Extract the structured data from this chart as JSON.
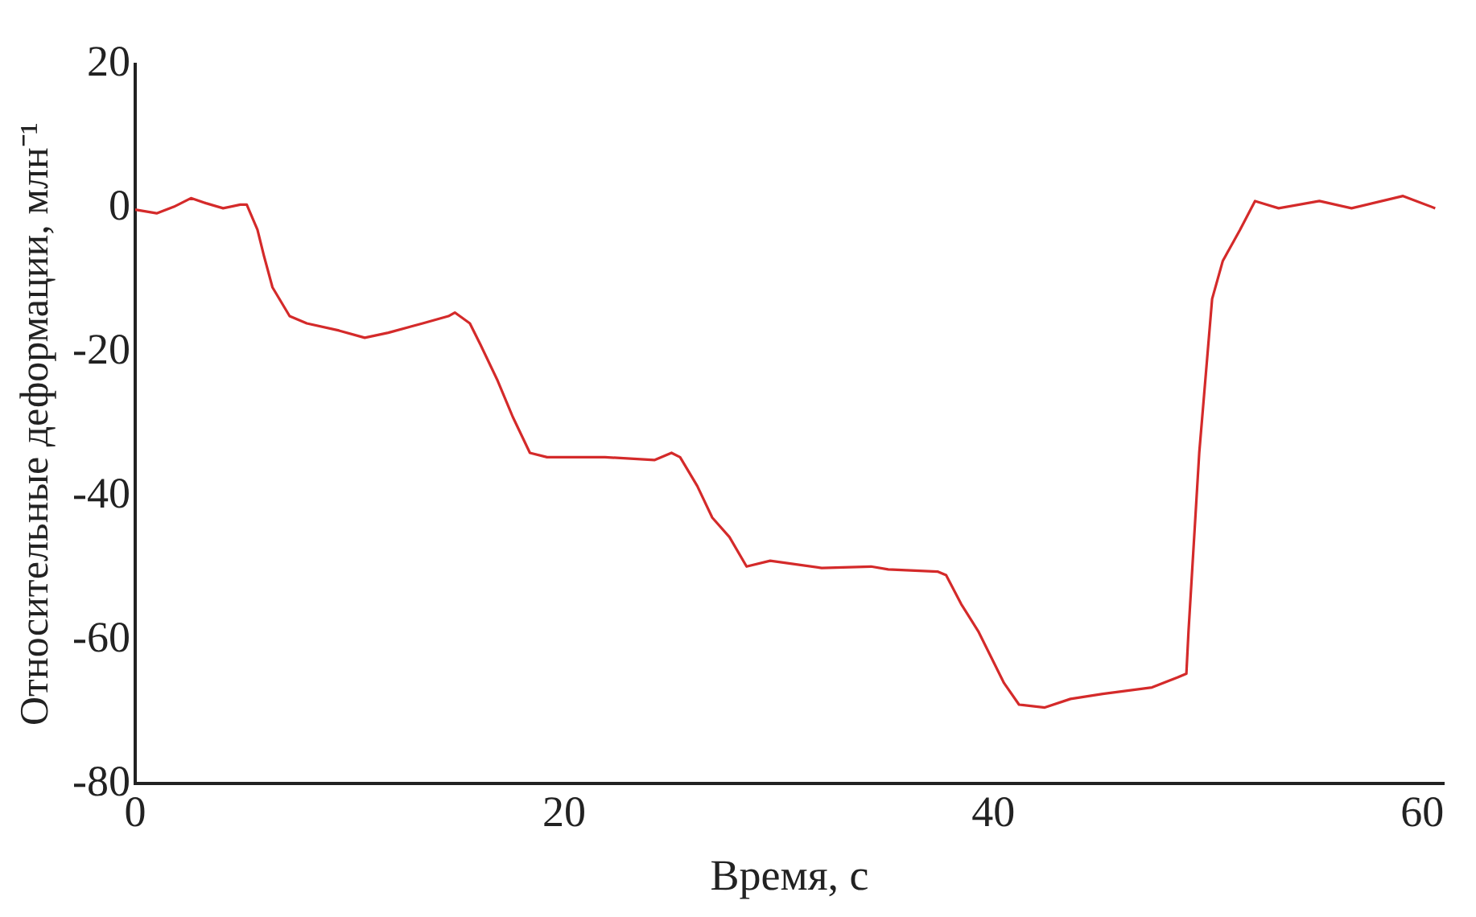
{
  "chart_data": {
    "type": "line",
    "xlabel": "Время, с",
    "ylabel": "Относительные деформации, млн⁻¹",
    "x": [
      0,
      1.0,
      1.8,
      2.6,
      3.3,
      4.1,
      4.9,
      5.2,
      5.7,
      6.0,
      6.4,
      7.2,
      8.0,
      9.5,
      10.7,
      11.8,
      13.4,
      14.6,
      14.9,
      15.6,
      16.1,
      16.9,
      17.6,
      18.4,
      19.2,
      21.9,
      24.2,
      25,
      25.4,
      26.2,
      26.9,
      27.7,
      28.5,
      29.6,
      32,
      34.3,
      35.1,
      37.4,
      37.8,
      38.5,
      39.3,
      40.5,
      41.2,
      42.4,
      43.6,
      45.1,
      47.4,
      48.6,
      49.0,
      49.1,
      49.6,
      50.2,
      50.7,
      51.5,
      52.2,
      53.3,
      55.2,
      56.7,
      59.1,
      60.6
    ],
    "series": [
      {
        "color": "#d42a2a",
        "values": [
          -0.2,
          -0.7,
          0.2,
          1.4,
          0.7,
          0,
          0.5,
          0.5,
          -3,
          -6.6,
          -11,
          -15,
          -16,
          -17,
          -18,
          -17.3,
          -16,
          -15,
          -14.5,
          -16,
          -19,
          -24,
          -29,
          -34,
          -34.6,
          -34.6,
          -35,
          -34,
          -34.6,
          -38.6,
          -43,
          -45.7,
          -49.8,
          -49,
          -50,
          -49.8,
          -50.2,
          -50.5,
          -51,
          -55,
          -58.8,
          -66,
          -69,
          -69.4,
          -68.2,
          -67.5,
          -66.6,
          -65.2,
          -64.7,
          -58.8,
          -34,
          -12.6,
          -7.3,
          -3,
          1,
          0,
          1,
          0,
          1.7,
          0
        ]
      }
    ],
    "xlim": [
      0,
      61
    ],
    "xticks": [
      0,
      20,
      40,
      60
    ],
    "ylim": [
      -80,
      20
    ],
    "yticks": [
      -80,
      -60,
      -40,
      -20,
      0,
      20
    ],
    "grid": false,
    "legend": false,
    "marker": "none",
    "line_style": "solid"
  }
}
